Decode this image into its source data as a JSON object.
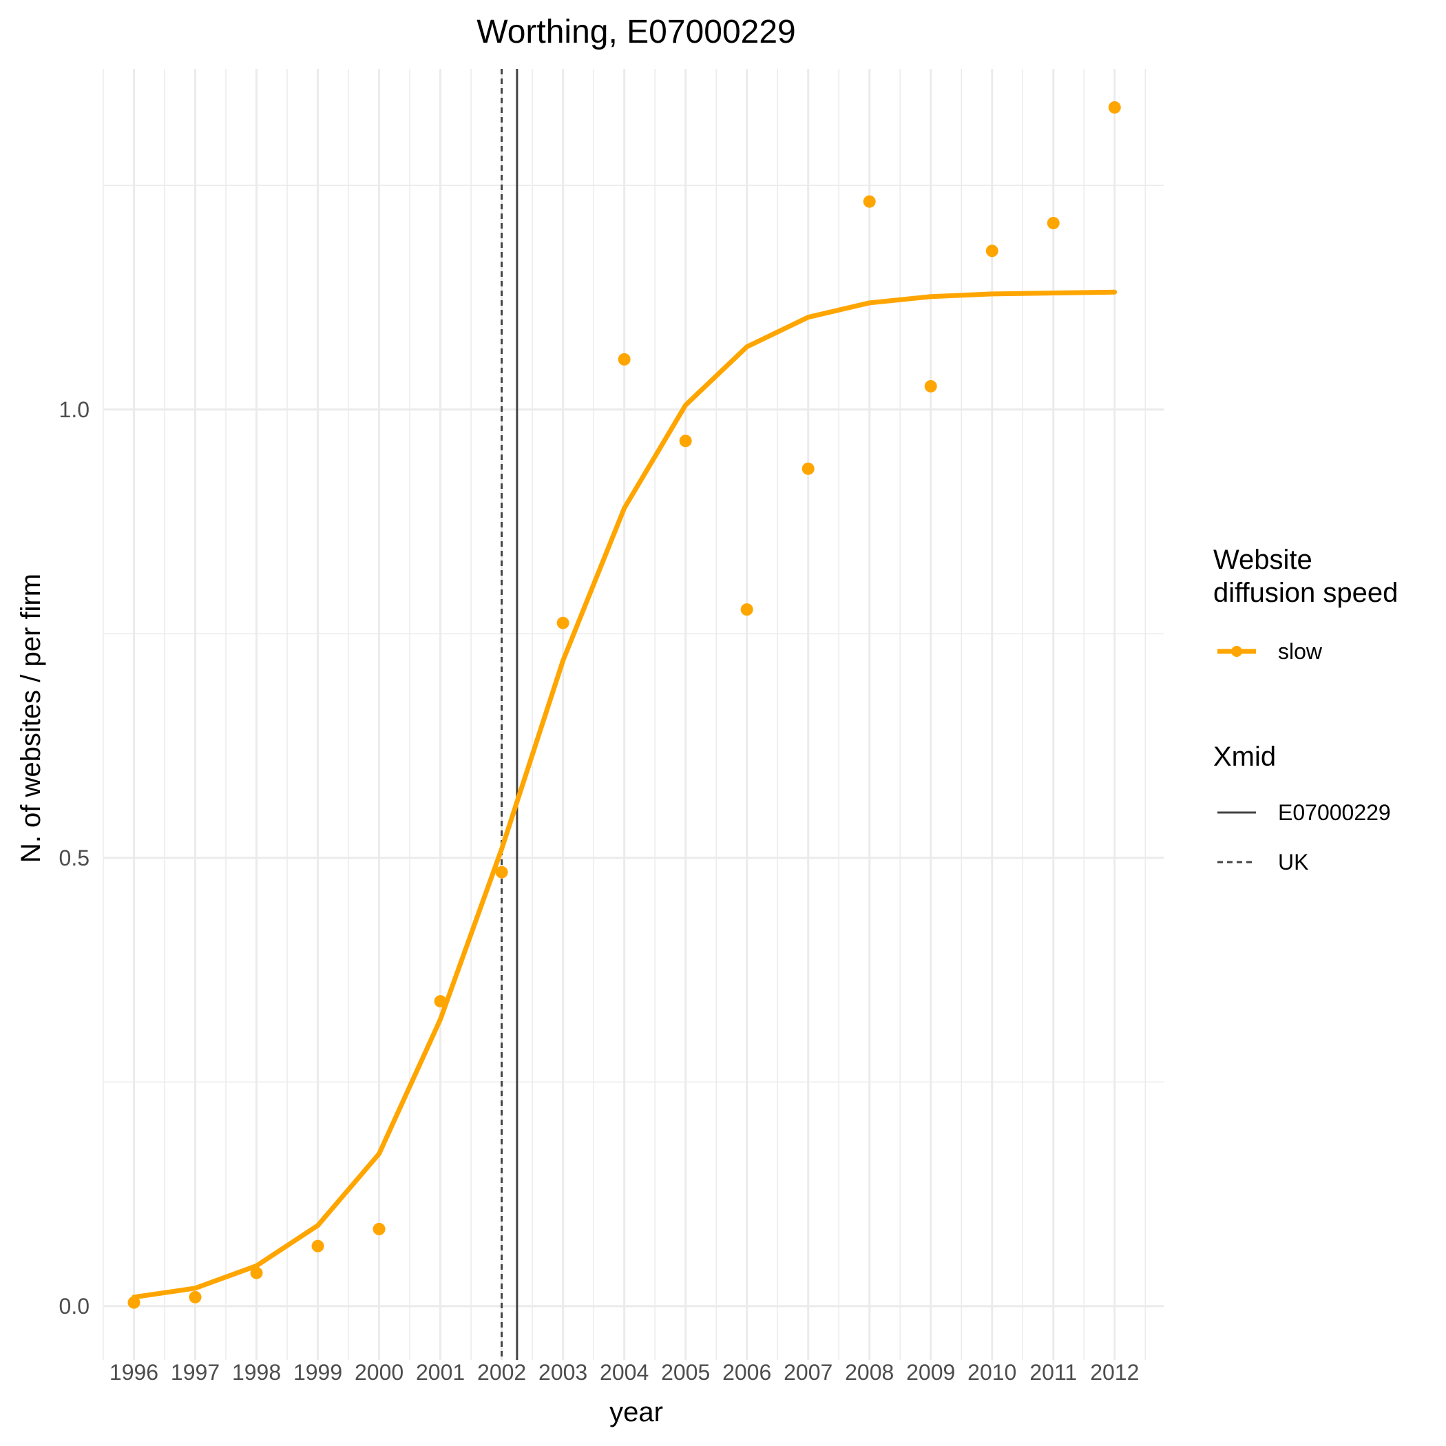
{
  "chart_data": {
    "type": "line",
    "title": "Worthing, E07000229",
    "xlabel": "year",
    "ylabel": "N. of websites / per firm",
    "x": [
      1996,
      1997,
      1998,
      1999,
      2000,
      2001,
      2002,
      2003,
      2004,
      2005,
      2006,
      2007,
      2008,
      2009,
      2010,
      2011,
      2012
    ],
    "x_ticks": [
      "1996",
      "1997",
      "1998",
      "1999",
      "2000",
      "2001",
      "2002",
      "2003",
      "2004",
      "2005",
      "2006",
      "2007",
      "2008",
      "2009",
      "2010",
      "2011",
      "2012"
    ],
    "y_ticks": [
      {
        "value": 0.0,
        "label": "0.0"
      },
      {
        "value": 0.5,
        "label": "0.5"
      },
      {
        "value": 1.0,
        "label": "1.0"
      }
    ],
    "xlim": [
      1995.5,
      2012.8
    ],
    "ylim": [
      -0.06,
      1.38
    ],
    "grid": true,
    "series": [
      {
        "name": "slow",
        "color": "#FFA500",
        "fitted": [
          0.01,
          0.02,
          0.045,
          0.09,
          0.17,
          0.32,
          0.51,
          0.72,
          0.89,
          1.005,
          1.07,
          1.103,
          1.119,
          1.126,
          1.129,
          1.13,
          1.131
        ],
        "observed": [
          0.004,
          0.01,
          0.037,
          0.067,
          0.086,
          0.34,
          0.484,
          0.762,
          1.056,
          0.965,
          0.777,
          0.934,
          1.232,
          1.026,
          1.177,
          1.208,
          1.337
        ]
      }
    ],
    "vlines": [
      {
        "name": "E07000229",
        "x": 2002.25,
        "style": "solid",
        "color": "#444444"
      },
      {
        "name": "UK",
        "x": 2002.0,
        "style": "dashed",
        "color": "#444444"
      }
    ],
    "legend": {
      "position": "right",
      "speed_title": "Website\ndiffusion speed",
      "speed_title_line1": "Website",
      "speed_title_line2": "diffusion speed",
      "speed_items": [
        {
          "label": "slow",
          "color": "#FFA500"
        }
      ],
      "xmid_title": "Xmid",
      "xmid_items": [
        {
          "label": "E07000229",
          "style": "solid"
        },
        {
          "label": "UK",
          "style": "dashed"
        }
      ]
    }
  }
}
